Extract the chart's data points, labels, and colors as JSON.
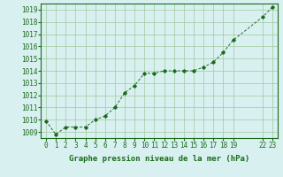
{
  "x": [
    0,
    1,
    2,
    3,
    4,
    5,
    6,
    7,
    8,
    9,
    10,
    11,
    12,
    13,
    14,
    15,
    16,
    17,
    18,
    19,
    22,
    23
  ],
  "y": [
    1009.9,
    1008.8,
    1009.4,
    1009.4,
    1009.4,
    1010.0,
    1010.3,
    1011.0,
    1012.2,
    1012.8,
    1013.8,
    1013.8,
    1014.0,
    1014.0,
    1014.0,
    1014.0,
    1014.3,
    1014.7,
    1015.5,
    1016.5,
    1018.4,
    1019.2
  ],
  "xlim": [
    -0.5,
    23.5
  ],
  "ylim": [
    1008.5,
    1019.5
  ],
  "yticks": [
    1009,
    1010,
    1011,
    1012,
    1013,
    1014,
    1015,
    1016,
    1017,
    1018,
    1019
  ],
  "xticks": [
    0,
    1,
    2,
    3,
    4,
    5,
    6,
    7,
    8,
    9,
    10,
    11,
    12,
    13,
    14,
    15,
    16,
    17,
    18,
    19,
    22,
    23
  ],
  "xlabel": "Graphe pression niveau de la mer (hPa)",
  "line_color": "#1a6b1a",
  "marker": "D",
  "marker_size": 1.8,
  "bg_color": "#d8f0f0",
  "grid_color": "#a0c8a0",
  "tick_label_color": "#1a6b1a",
  "label_color": "#1a6b1a",
  "label_fontsize": 6.5,
  "tick_fontsize": 5.5
}
